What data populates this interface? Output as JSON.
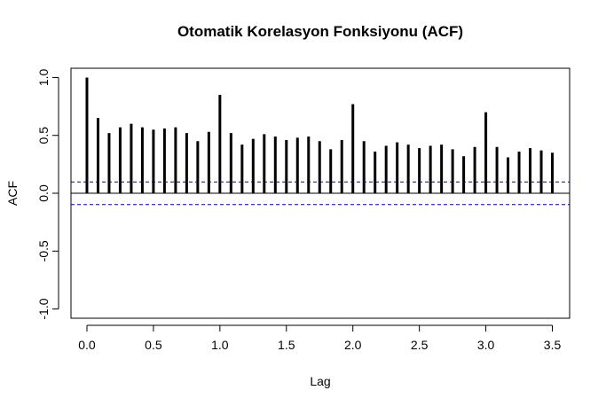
{
  "chart_data": {
    "type": "bar",
    "subtype": "acf-stem",
    "title": "Otomatik Korelasyon Fonksiyonu (ACF)",
    "xlabel": "Lag",
    "ylabel": "ACF",
    "xlim": [
      -0.12,
      3.63
    ],
    "ylim": [
      -1.08,
      1.08
    ],
    "xticks": [
      0.0,
      0.5,
      1.0,
      1.5,
      2.0,
      2.5,
      3.0,
      3.5
    ],
    "xtick_labels": [
      "0.0",
      "0.5",
      "1.0",
      "1.5",
      "2.0",
      "2.5",
      "3.0",
      "3.5"
    ],
    "yticks": [
      -1.0,
      -0.5,
      0.0,
      0.5,
      1.0
    ],
    "ytick_labels": [
      "-1.0",
      "-0.5",
      "0.0",
      "0.5",
      "1.0"
    ],
    "x": [
      0.0,
      0.0833,
      0.1667,
      0.25,
      0.3333,
      0.4167,
      0.5,
      0.5833,
      0.6667,
      0.75,
      0.8333,
      0.9167,
      1.0,
      1.0833,
      1.1667,
      1.25,
      1.3333,
      1.4167,
      1.5,
      1.5833,
      1.6667,
      1.75,
      1.8333,
      1.9167,
      2.0,
      2.0833,
      2.1667,
      2.25,
      2.3333,
      2.4167,
      2.5,
      2.5833,
      2.6667,
      2.75,
      2.8333,
      2.9167,
      3.0,
      3.0833,
      3.1667,
      3.25,
      3.3333,
      3.4167,
      3.5
    ],
    "values": [
      1.0,
      0.65,
      0.52,
      0.57,
      0.6,
      0.57,
      0.55,
      0.56,
      0.57,
      0.52,
      0.45,
      0.53,
      0.85,
      0.52,
      0.42,
      0.47,
      0.51,
      0.49,
      0.46,
      0.48,
      0.49,
      0.45,
      0.38,
      0.46,
      0.77,
      0.45,
      0.36,
      0.41,
      0.44,
      0.42,
      0.39,
      0.41,
      0.42,
      0.38,
      0.32,
      0.4,
      0.7,
      0.4,
      0.31,
      0.36,
      0.39,
      0.37,
      0.35
    ],
    "conf_upper": 0.098,
    "conf_lower": -0.098,
    "zero_line": 0.0,
    "colors": {
      "stems": "#000000",
      "conf_lines": "#0000cc",
      "zero_line": "#000000"
    },
    "grid": false,
    "legend": "none"
  }
}
